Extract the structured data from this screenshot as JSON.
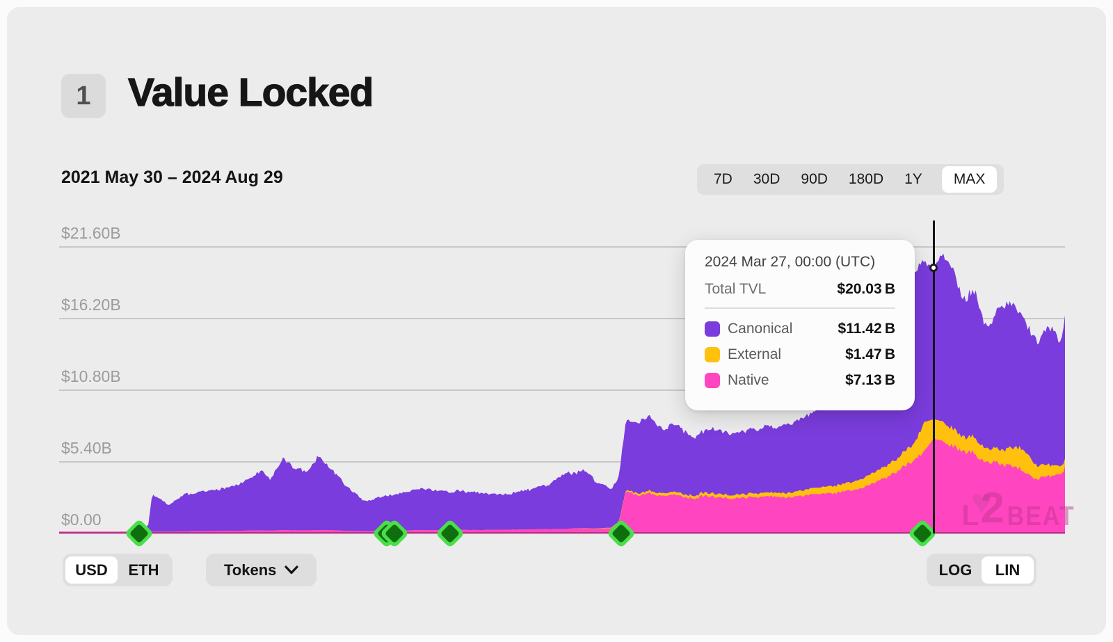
{
  "header": {
    "badge": "1",
    "title": "Value Locked"
  },
  "toolbar": {
    "date_range": "2021 May 30 – 2024 Aug 29",
    "range_options": [
      "7D",
      "30D",
      "90D",
      "180D",
      "1Y",
      "MAX"
    ],
    "range_selected": "MAX"
  },
  "tooltip": {
    "timestamp": "2024 Mar 27, 00:00 (UTC)",
    "total_label": "Total TVL",
    "total_value": "$20.03 B",
    "rows": [
      {
        "label": "Canonical",
        "value": "$11.42 B",
        "color": "#7a3cdc"
      },
      {
        "label": "External",
        "value": "$1.47 B",
        "color": "#ffc10d"
      },
      {
        "label": "Native",
        "value": "$7.13 B",
        "color": "#ff46c0"
      }
    ]
  },
  "controls": {
    "currency_options": [
      "USD",
      "ETH"
    ],
    "currency_selected": "USD",
    "tokens_label": "Tokens",
    "scale_options": [
      "LOG",
      "LIN"
    ],
    "scale_selected": "LIN"
  },
  "watermark": {
    "l": "L",
    "two": "2",
    "beat": "BEAT",
    "heart": "♥"
  },
  "chart_data": {
    "type": "area",
    "title": "Value Locked",
    "x_range": [
      "2021-05-30",
      "2024-08-29"
    ],
    "ylim": [
      0,
      21.6
    ],
    "unit": "$B",
    "y_ticks": [
      21.6,
      16.2,
      10.8,
      5.4,
      0
    ],
    "y_tick_labels": [
      "$21.60B",
      "$16.20B",
      "$10.80B",
      "$5.40B",
      "$0.00"
    ],
    "grid_color": "#c7c7c7",
    "axis_label_color": "#9b9b9b",
    "legend_position": "tooltip",
    "dates": [
      "2021-05-30",
      "2021-07-22",
      "2021-08-29",
      "2021-09-12",
      "2021-09-17",
      "2021-09-28",
      "2021-10-06",
      "2021-10-25",
      "2021-11-19",
      "2021-12-14",
      "2022-01-08",
      "2022-01-22",
      "2022-02-02",
      "2022-02-19",
      "2022-03-03",
      "2022-03-20",
      "2022-04-01",
      "2022-04-18",
      "2022-05-04",
      "2022-05-24",
      "2022-06-17",
      "2022-07-07",
      "2022-07-29",
      "2022-08-23",
      "2022-09-16",
      "2022-10-11",
      "2022-11-04",
      "2022-11-29",
      "2022-12-23",
      "2023-01-17",
      "2023-02-07",
      "2023-02-23",
      "2023-03-12",
      "2023-03-22",
      "2023-03-30",
      "2023-04-14",
      "2023-04-27",
      "2023-05-12",
      "2023-05-29",
      "2023-06-18",
      "2023-07-09",
      "2023-08-02",
      "2023-08-27",
      "2023-09-21",
      "2023-10-15",
      "2023-11-09",
      "2023-12-03",
      "2023-12-28",
      "2024-01-21",
      "2024-02-15",
      "2024-03-05",
      "2024-03-16",
      "2024-03-27",
      "2024-04-07",
      "2024-04-19",
      "2024-05-01",
      "2024-05-15",
      "2024-05-30",
      "2024-06-14",
      "2024-06-28",
      "2024-07-12",
      "2024-07-27",
      "2024-08-13",
      "2024-08-23",
      "2024-08-29"
    ],
    "series": [
      {
        "name": "Native",
        "color": "#ff46c0",
        "values": [
          0.02,
          0.03,
          0.04,
          0.06,
          0.1,
          0.12,
          0.12,
          0.15,
          0.18,
          0.2,
          0.22,
          0.24,
          0.22,
          0.25,
          0.24,
          0.24,
          0.25,
          0.25,
          0.2,
          0.18,
          0.2,
          0.22,
          0.25,
          0.25,
          0.27,
          0.27,
          0.28,
          0.3,
          0.32,
          0.35,
          0.38,
          0.35,
          0.4,
          0.9,
          3.3,
          2.8,
          3.0,
          2.8,
          2.9,
          2.7,
          2.8,
          2.6,
          2.7,
          2.75,
          2.8,
          3.0,
          3.1,
          3.4,
          3.9,
          4.8,
          5.5,
          6.2,
          7.13,
          7.0,
          6.6,
          6.2,
          6.0,
          5.4,
          5.2,
          5.0,
          4.7,
          4.2,
          4.3,
          4.6,
          5.0
        ]
      },
      {
        "name": "External",
        "color": "#ffc10d",
        "values": [
          0,
          0,
          0,
          0,
          0,
          0,
          0,
          0,
          0,
          0,
          0,
          0,
          0,
          0,
          0,
          0,
          0,
          0,
          0,
          0,
          0,
          0,
          0,
          0,
          0,
          0,
          0,
          0,
          0,
          0,
          0.02,
          0.03,
          0.05,
          0.07,
          0.1,
          0.15,
          0.18,
          0.2,
          0.2,
          0.22,
          0.25,
          0.25,
          0.28,
          0.3,
          0.35,
          0.5,
          0.55,
          0.65,
          0.8,
          1.0,
          1.3,
          2.2,
          1.47,
          1.5,
          1.3,
          1.1,
          1.2,
          1.0,
          1.1,
          1.4,
          1.6,
          1.0,
          0.8,
          0.6,
          0.6
        ]
      },
      {
        "name": "Canonical",
        "color": "#7a3cdc",
        "values": [
          0.05,
          0.08,
          0.12,
          0.5,
          2.8,
          2.4,
          2.0,
          2.75,
          3.0,
          3.2,
          3.9,
          4.55,
          3.9,
          5.4,
          4.7,
          4.35,
          5.65,
          4.4,
          3.4,
          2.3,
          2.6,
          2.9,
          3.15,
          3.0,
          2.9,
          2.75,
          2.7,
          2.9,
          3.2,
          4.1,
          4.3,
          3.6,
          2.9,
          3.4,
          5.2,
          5.25,
          5.8,
          4.7,
          5.1,
          4.4,
          4.95,
          4.55,
          4.9,
          4.95,
          5.25,
          5.8,
          6.85,
          8.0,
          9.8,
          11.7,
          13.0,
          12.0,
          11.42,
          12.8,
          12.1,
          10.3,
          10.9,
          8.6,
          11.2,
          11.0,
          9.9,
          9.5,
          10.4,
          9.5,
          10.6
        ]
      }
    ],
    "milestones": {
      "outer_color": "#4ade4a",
      "inner_color": "#0f6f0f",
      "dates": [
        "2021-09-01",
        "2022-06-21",
        "2022-06-30",
        "2022-09-03",
        "2023-03-24",
        "2024-03-14"
      ]
    },
    "crosshair": {
      "date": "2024-03-27",
      "total": 20.03,
      "line_color": "#151515"
    }
  }
}
